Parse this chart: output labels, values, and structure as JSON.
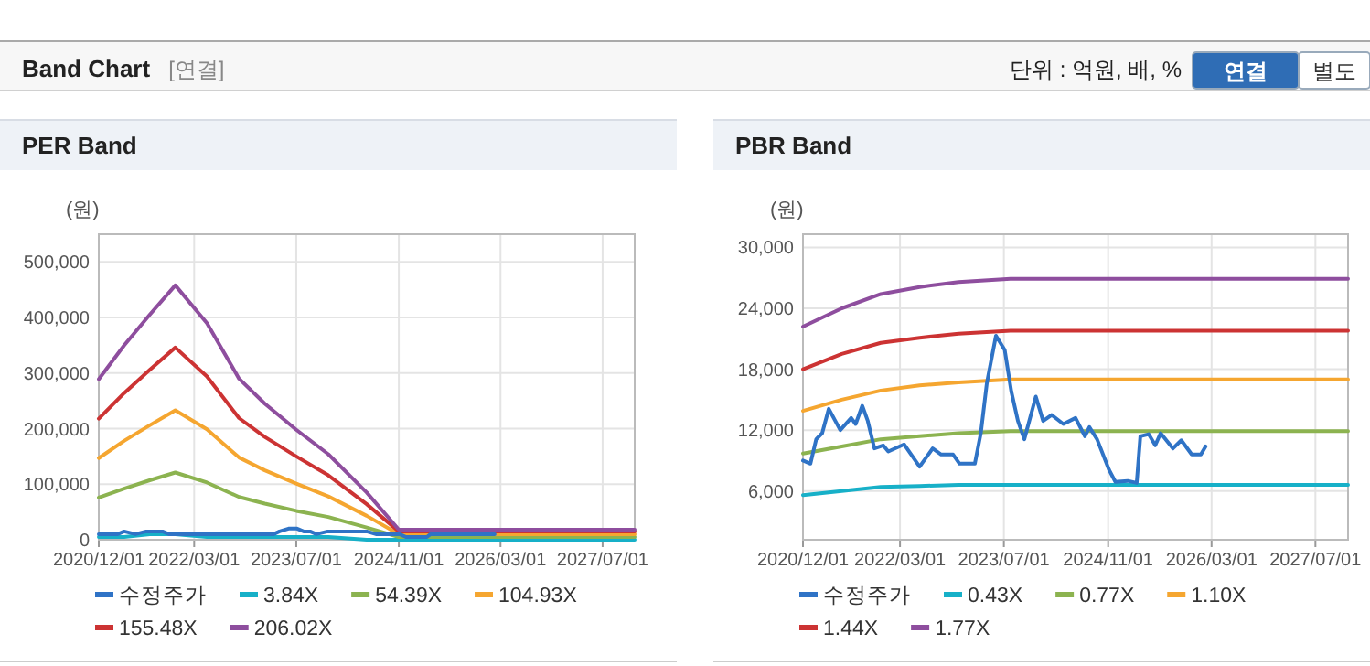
{
  "chart_data": [
    {
      "type": "other",
      "title": "Band Chart",
      "subtitle": "[연결]",
      "annotations": [
        "단위 : 억원, 배, %",
        "연결",
        "별도"
      ]
    },
    {
      "type": "line",
      "title": "PER Band",
      "ylabel": "(원)",
      "grid": true,
      "legend": "bottom",
      "marker": "none",
      "line_style": "solid",
      "xlim": [
        "2020-12-01",
        "2027-12-01"
      ],
      "ylim": [
        0,
        550000
      ],
      "xticks": [
        {
          "value": "2020-12-01",
          "label": "2020/12/01"
        },
        {
          "value": "2022-03-01",
          "label": "2022/03/01"
        },
        {
          "value": "2023-07-01",
          "label": "2023/07/01"
        },
        {
          "value": "2024-11-01",
          "label": "2024/11/01"
        },
        {
          "value": "2026-03-01",
          "label": "2026/03/01"
        },
        {
          "value": "2027-07-01",
          "label": "2027/07/01"
        }
      ],
      "yticks": [
        0,
        {
          "value": 100000,
          "label": "100,000"
        },
        {
          "value": 200000,
          "label": "200,000"
        },
        {
          "value": 300000,
          "label": "300,000"
        },
        {
          "value": 400000,
          "label": "400,000"
        },
        {
          "value": 500000,
          "label": "500,000"
        }
      ],
      "x": [
        "2020-12-01",
        "2021-04-01",
        "2021-08-01",
        "2021-12-01",
        "2022-05-01",
        "2022-10-01",
        "2023-02-01",
        "2023-07-01",
        "2023-12-01",
        "2024-06-01",
        "2024-11-01",
        "2027-12-01"
      ],
      "series": [
        {
          "name": "수정주가",
          "color": "#2f73c6",
          "x": [
            "2020-12-01",
            "2021-01-05",
            "2021-02-01",
            "2021-03-01",
            "2021-04-01",
            "2021-05-25",
            "2021-07-15",
            "2021-08-05",
            "2021-09-05",
            "2021-10-01",
            "2021-11-01",
            "2021-12-12",
            "2022-01-05",
            "2022-03-20",
            "2022-06-01",
            "2022-08-01",
            "2022-09-10",
            "2022-11-05",
            "2022-12-05",
            "2023-02-15",
            "2023-03-15",
            "2023-04-12",
            "2023-05-25",
            "2023-07-05",
            "2023-08-05",
            "2023-09-05",
            "2023-10-05",
            "2023-11-28",
            "2024-01-01",
            "2024-02-10",
            "2024-04-05",
            "2024-06-01",
            "2024-07-15",
            "2024-08-05",
            "2024-09-10",
            "2024-11-05",
            "2024-12-05",
            "2025-02-01",
            "2025-03-15",
            "2025-04-01",
            "2025-05-10",
            "2025-06-10",
            "2025-07-05",
            "2025-09-01",
            "2025-10-10",
            "2025-11-28",
            "2026-01-10",
            "2026-02-01"
          ],
          "values": [
            10000,
            10000,
            10000,
            10000,
            15000,
            10000,
            15000,
            15000,
            15000,
            15000,
            10000,
            10000,
            10000,
            10000,
            10000,
            10000,
            10000,
            10000,
            10000,
            10000,
            10000,
            15000,
            20000,
            20000,
            15000,
            15000,
            10000,
            15000,
            15000,
            15000,
            15000,
            15000,
            10000,
            10000,
            10000,
            10000,
            5000,
            5000,
            5000,
            10000,
            10000,
            10000,
            10000,
            10000,
            10000,
            10000,
            10000,
            10000
          ]
        },
        {
          "name": "3.84X",
          "color": "#17b0c8",
          "values": [
            5000,
            5000,
            10000,
            10000,
            5000,
            5000,
            5000,
            5000,
            5000,
            0,
            0,
            0
          ]
        },
        {
          "name": "54.39X",
          "color": "#8cb350",
          "values": [
            76000,
            92000,
            107000,
            121000,
            103000,
            77000,
            65000,
            52000,
            41000,
            22000,
            5000,
            5000
          ]
        },
        {
          "name": "104.93X",
          "color": "#f5a630",
          "values": [
            147000,
            178000,
            206000,
            233000,
            199000,
            148000,
            125000,
            101000,
            78000,
            43000,
            10000,
            10000
          ]
        },
        {
          "name": "155.48X",
          "color": "#cc3333",
          "values": [
            218000,
            264000,
            306000,
            346000,
            294000,
            219000,
            185000,
            150000,
            116000,
            64000,
            15000,
            15000
          ]
        },
        {
          "name": "206.02X",
          "color": "#8e4e9e",
          "values": [
            289000,
            350000,
            405000,
            458000,
            390000,
            290000,
            245000,
            198000,
            154000,
            85000,
            18000,
            18000
          ]
        }
      ]
    },
    {
      "type": "line",
      "title": "PBR Band",
      "ylabel": "(원)",
      "grid": true,
      "legend": "bottom",
      "marker": "none",
      "line_style": "solid",
      "xlim": [
        "2020-12-01",
        "2027-12-01"
      ],
      "ylim": [
        1200,
        31300
      ],
      "xticks": [
        {
          "value": "2020-12-01",
          "label": "2020/12/01"
        },
        {
          "value": "2022-03-01",
          "label": "2022/03/01"
        },
        {
          "value": "2023-07-01",
          "label": "2023/07/01"
        },
        {
          "value": "2024-11-01",
          "label": "2024/11/01"
        },
        {
          "value": "2026-03-01",
          "label": "2026/03/01"
        },
        {
          "value": "2027-07-01",
          "label": "2027/07/01"
        }
      ],
      "yticks": [
        {
          "value": 6000,
          "label": "6,000"
        },
        {
          "value": 12000,
          "label": "12,000"
        },
        {
          "value": 18000,
          "label": "18,000"
        },
        {
          "value": 24000,
          "label": "24,000"
        },
        {
          "value": 30000,
          "label": "30,000"
        }
      ],
      "x": [
        "2020-12-01",
        "2021-06-01",
        "2021-12-01",
        "2022-06-01",
        "2022-12-01",
        "2023-08-01",
        "2027-12-01"
      ],
      "series": [
        {
          "name": "수정주가",
          "color": "#2f73c6",
          "x": [
            "2020-12-01",
            "2021-01-05",
            "2021-02-01",
            "2021-03-01",
            "2021-04-01",
            "2021-05-25",
            "2021-07-15",
            "2021-08-05",
            "2021-09-05",
            "2021-10-01",
            "2021-11-01",
            "2021-12-12",
            "2022-01-05",
            "2022-03-20",
            "2022-06-01",
            "2022-08-01",
            "2022-09-10",
            "2022-11-05",
            "2022-12-05",
            "2023-02-15",
            "2023-03-15",
            "2023-04-12",
            "2023-05-25",
            "2023-07-05",
            "2023-08-05",
            "2023-09-05",
            "2023-10-05",
            "2023-11-28",
            "2024-01-01",
            "2024-02-10",
            "2024-04-05",
            "2024-06-01",
            "2024-07-15",
            "2024-08-05",
            "2024-09-10",
            "2024-11-05",
            "2024-12-05",
            "2025-02-01",
            "2025-03-15",
            "2025-04-01",
            "2025-05-10",
            "2025-06-10",
            "2025-07-05",
            "2025-09-01",
            "2025-10-10",
            "2025-11-28",
            "2026-01-10",
            "2026-02-01"
          ],
          "values": [
            9000,
            8700,
            11100,
            11700,
            14100,
            12000,
            13200,
            12600,
            14400,
            12900,
            10200,
            10500,
            9900,
            10600,
            8400,
            10200,
            9600,
            9600,
            8700,
            8700,
            11700,
            16600,
            21300,
            19900,
            15800,
            12900,
            11100,
            15300,
            12900,
            13500,
            12600,
            13200,
            11400,
            12300,
            11100,
            8100,
            6900,
            7000,
            6800,
            11400,
            11600,
            10500,
            11700,
            10200,
            11000,
            9600,
            9600,
            10400
          ]
        },
        {
          "name": "0.43X",
          "color": "#17b0c8",
          "values": [
            5600,
            6000,
            6400,
            6500,
            6600,
            6600,
            6600
          ]
        },
        {
          "name": "0.77X",
          "color": "#8cb350",
          "values": [
            9700,
            10400,
            11100,
            11400,
            11700,
            11900,
            11900
          ]
        },
        {
          "name": "1.10X",
          "color": "#f5a630",
          "values": [
            13900,
            15000,
            15900,
            16400,
            16700,
            17000,
            17000
          ]
        },
        {
          "name": "1.44X",
          "color": "#cc3333",
          "values": [
            18000,
            19500,
            20600,
            21100,
            21500,
            21800,
            21800
          ]
        },
        {
          "name": "1.77X",
          "color": "#8e4e9e",
          "values": [
            22200,
            24000,
            25400,
            26100,
            26600,
            26900,
            26900
          ]
        }
      ]
    }
  ]
}
